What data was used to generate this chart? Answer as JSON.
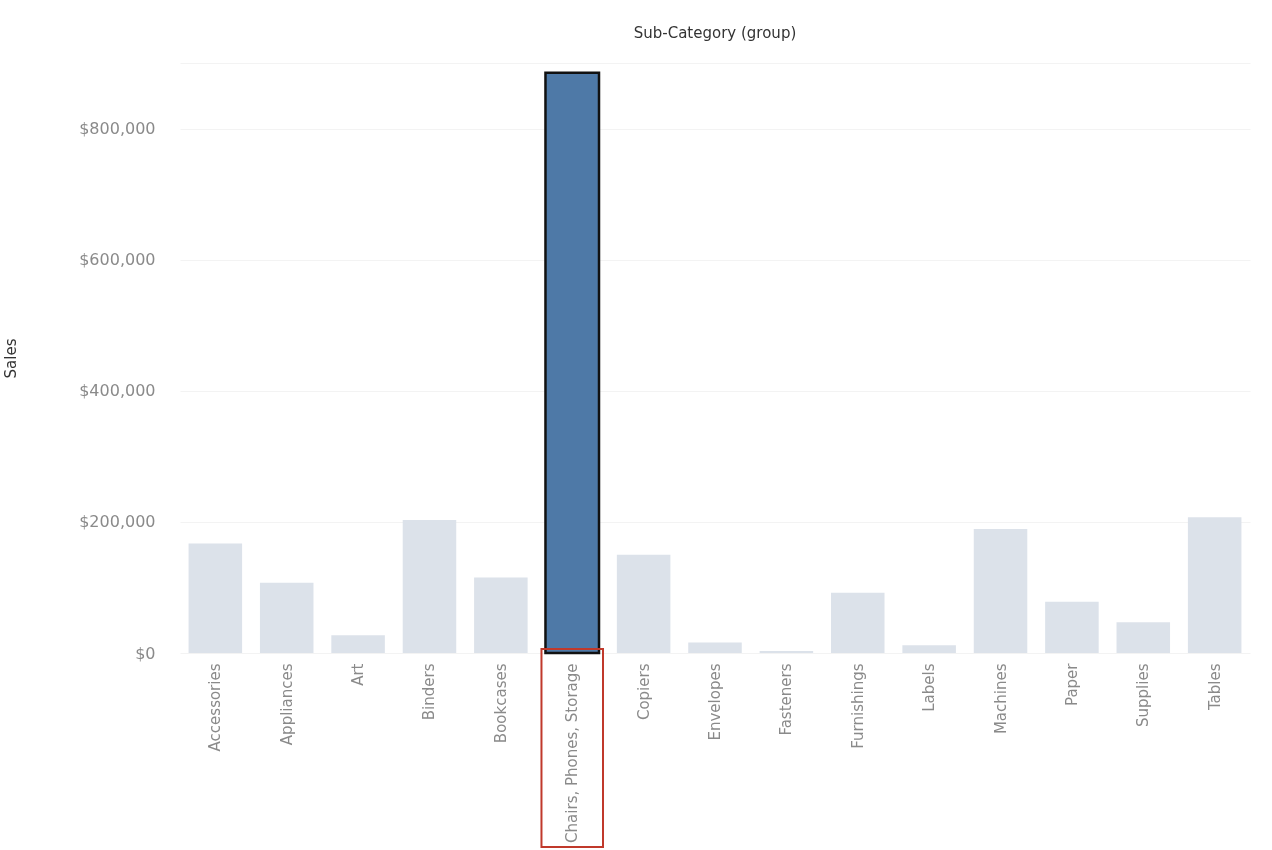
{
  "chart_data": {
    "type": "bar",
    "title": "Sub-Category (group)",
    "ylabel": "Sales",
    "categories": [
      "Accessories",
      "Appliances",
      "Art",
      "Binders",
      "Bookcases",
      "Chairs, Phones, Storage",
      "Copiers",
      "Envelopes",
      "Fasteners",
      "Furnishings",
      "Labels",
      "Machines",
      "Paper",
      "Supplies",
      "Tables"
    ],
    "values": [
      167000,
      107000,
      27000,
      203000,
      115000,
      885000,
      150000,
      16000,
      3000,
      92000,
      12000,
      189000,
      78000,
      47000,
      207000
    ],
    "colors": [
      "#dce2ea",
      "#dce2ea",
      "#dce2ea",
      "#dce2ea",
      "#dce2ea",
      "#4e79a7",
      "#dce2ea",
      "#dce2ea",
      "#dce2ea",
      "#dce2ea",
      "#dce2ea",
      "#dce2ea",
      "#dce2ea",
      "#dce2ea",
      "#dce2ea"
    ],
    "ylim": [
      0,
      900000
    ],
    "yticks": [
      {
        "value": 0,
        "label": "$0"
      },
      {
        "value": 200000,
        "label": "$200,000"
      },
      {
        "value": 400000,
        "label": "$400,000"
      },
      {
        "value": 600000,
        "label": "$600,000"
      },
      {
        "value": 800000,
        "label": "$800,000"
      },
      {
        "value": 900000,
        "label": null
      }
    ],
    "grid": "y"
  }
}
